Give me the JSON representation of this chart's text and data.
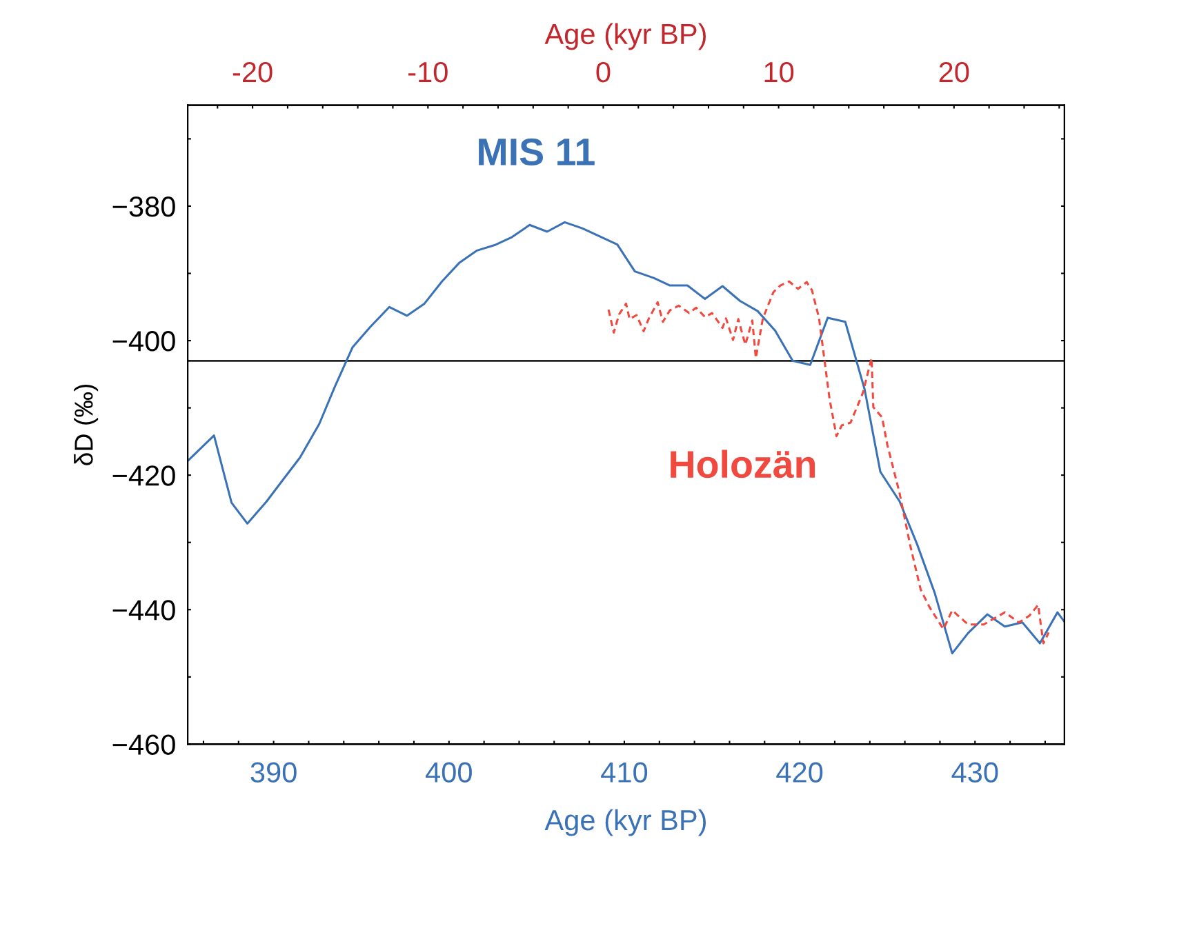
{
  "chart_data": {
    "type": "line",
    "xlabel": "Age (kyr BP)",
    "x2label": "Age (kyr BP)",
    "ylabel": "δD (‰)",
    "xlim": [
      385.1,
      435.1
    ],
    "x2lim": [
      -23.7,
      26.3
    ],
    "ylim": [
      -460,
      -365
    ],
    "xticks": [
      {
        "value": 386,
        "label": null
      },
      {
        "value": 388,
        "label": null
      },
      390,
      {
        "value": 392,
        "label": null
      },
      {
        "value": 394,
        "label": null
      },
      {
        "value": 396,
        "label": null
      },
      {
        "value": 398,
        "label": null
      },
      400,
      {
        "value": 402,
        "label": null
      },
      {
        "value": 404,
        "label": null
      },
      {
        "value": 406,
        "label": null
      },
      {
        "value": 408,
        "label": null
      },
      410,
      {
        "value": 412,
        "label": null
      },
      {
        "value": 414,
        "label": null
      },
      {
        "value": 416,
        "label": null
      },
      {
        "value": 418,
        "label": null
      },
      420,
      {
        "value": 422,
        "label": null
      },
      {
        "value": 424,
        "label": null
      },
      {
        "value": 426,
        "label": null
      },
      {
        "value": 428,
        "label": null
      },
      430,
      {
        "value": 432,
        "label": null
      },
      {
        "value": 434,
        "label": null
      }
    ],
    "x2ticks": [
      {
        "value": -22,
        "label": null
      },
      -20,
      {
        "value": -18,
        "label": null
      },
      {
        "value": -16,
        "label": null
      },
      {
        "value": -14,
        "label": null
      },
      {
        "value": -12,
        "label": null
      },
      -10,
      {
        "value": -8,
        "label": null
      },
      {
        "value": -6,
        "label": null
      },
      {
        "value": -4,
        "label": null
      },
      {
        "value": -2,
        "label": null
      },
      0,
      {
        "value": 2,
        "label": null
      },
      {
        "value": 4,
        "label": null
      },
      {
        "value": 6,
        "label": null
      },
      {
        "value": 8,
        "label": null
      },
      10,
      {
        "value": 12,
        "label": null
      },
      {
        "value": 14,
        "label": null
      },
      {
        "value": 16,
        "label": null
      },
      {
        "value": 18,
        "label": null
      },
      20,
      {
        "value": 22,
        "label": null
      },
      {
        "value": 24,
        "label": null
      },
      {
        "value": 26,
        "label": null
      }
    ],
    "yticks": [
      {
        "value": -460,
        "label": "−460"
      },
      {
        "value": -450,
        "label": null
      },
      {
        "value": -440,
        "label": "−440"
      },
      {
        "value": -430,
        "label": null
      },
      {
        "value": -420,
        "label": "−420"
      },
      {
        "value": -410,
        "label": null
      },
      {
        "value": -400,
        "label": "−400"
      },
      {
        "value": -390,
        "label": null
      },
      {
        "value": -380,
        "label": "−380"
      },
      {
        "value": -370,
        "label": null
      }
    ],
    "grid": false,
    "legend": false,
    "marker": "none",
    "ref_lines": [
      {
        "axis": "y",
        "value": -403,
        "color": "#222222",
        "line_style": "solid"
      }
    ],
    "series": [
      {
        "name": "MIS 11",
        "color": "#3a72b5",
        "line_style": "solid",
        "x": [
          385.1,
          386.6,
          387.6,
          388.5,
          389.6,
          390.5,
          391.5,
          392.6,
          393.5,
          394.5,
          395.5,
          396.6,
          397.6,
          398.6,
          399.6,
          400.6,
          401.6,
          402.6,
          403.6,
          404.6,
          405.6,
          406.6,
          407.6,
          408.6,
          409.6,
          410.6,
          411.7,
          412.6,
          413.6,
          414.6,
          415.6,
          416.6,
          417.6,
          418.6,
          419.6,
          420.6,
          421.6,
          422.6,
          423.7,
          424.6,
          425.7,
          426.7,
          427.7,
          428.7,
          429.6,
          430.7,
          431.7,
          432.7,
          433.7,
          434.7,
          435.1
        ],
        "values": [
          -417.9,
          -414.1,
          -424.1,
          -427.2,
          -423.9,
          -420.8,
          -417.4,
          -412.4,
          -406.8,
          -401.0,
          -398.0,
          -395.0,
          -396.3,
          -394.5,
          -391.2,
          -388.4,
          -386.6,
          -385.8,
          -384.6,
          -382.8,
          -383.8,
          -382.4,
          -383.3,
          -384.5,
          -385.7,
          -389.7,
          -390.7,
          -391.8,
          -391.8,
          -393.8,
          -391.9,
          -394.1,
          -395.6,
          -398.5,
          -403.0,
          -403.6,
          -396.6,
          -397.2,
          -407.2,
          -419.5,
          -423.9,
          -430.3,
          -437.5,
          -446.5,
          -443.5,
          -440.7,
          -442.5,
          -441.9,
          -445.0,
          -440.4,
          -441.8
        ]
      },
      {
        "name": "Holozän",
        "color": "#f0493f",
        "line_style": "dashed",
        "axis": "x2",
        "x": [
          0.3,
          0.6,
          0.9,
          1.3,
          1.5,
          1.9,
          2.3,
          2.6,
          3.1,
          3.4,
          3.8,
          4.3,
          4.9,
          5.3,
          5.8,
          6.2,
          6.8,
          7.0,
          7.4,
          7.7,
          8.1,
          8.5,
          8.7,
          9.1,
          9.7,
          10.1,
          10.6,
          11.1,
          11.6,
          11.9,
          12.3,
          12.9,
          13.3,
          13.6,
          14.1,
          14.8,
          15.3,
          15.4,
          15.9,
          16.2,
          16.9,
          17.5,
          18.1,
          18.6,
          19.4,
          19.9,
          20.8,
          21.7,
          22.9,
          23.7,
          24.3,
          24.8,
          25.1,
          25.4
        ],
        "values": [
          -395.4,
          -398.8,
          -396.1,
          -394.5,
          -396.8,
          -396.2,
          -398.6,
          -396.7,
          -394.3,
          -397.2,
          -395.5,
          -394.8,
          -395.9,
          -395.1,
          -396.5,
          -395.9,
          -398.1,
          -396.7,
          -399.9,
          -396.8,
          -400.6,
          -397.0,
          -402.6,
          -396.7,
          -392.8,
          -391.8,
          -391.2,
          -392.3,
          -391.3,
          -392.5,
          -396.6,
          -408.6,
          -414.2,
          -412.6,
          -412.2,
          -407.8,
          -402.6,
          -409.9,
          -411.4,
          -415.5,
          -422.7,
          -430.4,
          -437.0,
          -439.6,
          -442.9,
          -440.1,
          -442.2,
          -442.2,
          -440.4,
          -441.9,
          -440.9,
          -439.3,
          -445.0,
          -443.4
        ]
      }
    ]
  }
}
